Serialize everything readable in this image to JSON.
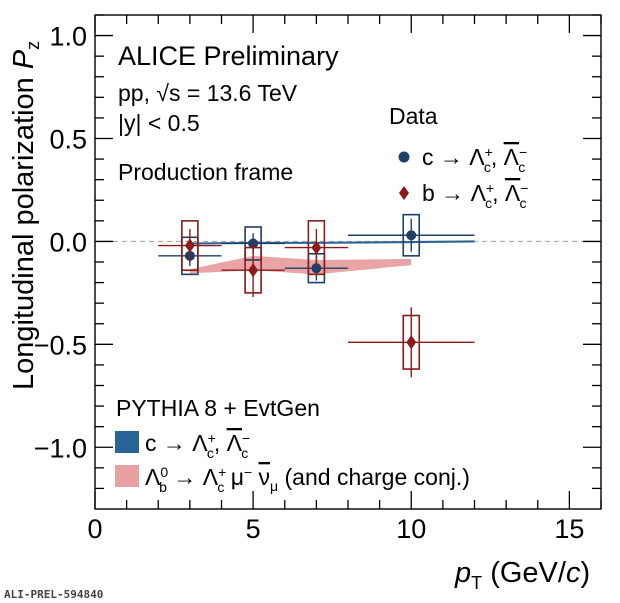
{
  "chart_data": {
    "type": "scatter",
    "title": "ALICE Preliminary",
    "subtitle_lines": [
      "pp, √s = 13.6 TeV",
      "|y| < 0.5"
    ],
    "frame_label": "Production frame",
    "ylabel": "Longitudinal polarization P_z",
    "xlabel": "p_T (GeV/c)",
    "xlim": [
      0,
      16
    ],
    "ylim": [
      -1.3,
      1.1
    ],
    "x_ticks": [
      0,
      5,
      10,
      15
    ],
    "y_ticks": [
      1.0,
      0.5,
      0.0,
      -0.5,
      -1.0
    ],
    "reference_line_y": 0.0,
    "data_legend_title": "Data",
    "series": [
      {
        "name": "c → Λc+, Λc−bar",
        "marker": "circle",
        "color": "#1f3f66",
        "points": [
          {
            "x": 3.0,
            "y": -0.07,
            "xlow": 2.0,
            "xhigh": 4.0,
            "stat": 0.05,
            "syst": 0.09
          },
          {
            "x": 5.0,
            "y": -0.01,
            "xlow": 4.0,
            "xhigh": 6.0,
            "stat": 0.05,
            "syst": 0.08
          },
          {
            "x": 7.0,
            "y": -0.13,
            "xlow": 6.0,
            "xhigh": 8.0,
            "stat": 0.06,
            "syst": 0.07
          },
          {
            "x": 10.0,
            "y": 0.03,
            "xlow": 8.0,
            "xhigh": 12.0,
            "stat": 0.08,
            "syst": 0.1
          }
        ]
      },
      {
        "name": "b → Λc+, Λc−bar",
        "marker": "diamond",
        "color": "#8b1a1a",
        "points": [
          {
            "x": 3.0,
            "y": -0.02,
            "xlow": 2.0,
            "xhigh": 4.0,
            "stat": 0.08,
            "syst": 0.12
          },
          {
            "x": 5.0,
            "y": -0.14,
            "xlow": 4.0,
            "xhigh": 6.0,
            "stat": 0.13,
            "syst": 0.11
          },
          {
            "x": 7.0,
            "y": -0.03,
            "xlow": 6.0,
            "xhigh": 8.0,
            "stat": 0.09,
            "syst": 0.13
          },
          {
            "x": 10.0,
            "y": -0.49,
            "xlow": 8.0,
            "xhigh": 12.0,
            "stat": 0.17,
            "syst": 0.13
          }
        ]
      }
    ],
    "model_legend_title": "PYTHIA 8 + EvtGen",
    "models": [
      {
        "name": "c → Λc+, Λc−bar",
        "color": "#2a6496",
        "x": [
          3.0,
          5.0,
          7.0,
          10.0,
          12.0
        ],
        "ylow": [
          -0.015,
          -0.012,
          -0.012,
          -0.008,
          -0.005
        ],
        "yhigh": [
          -0.005,
          -0.002,
          -0.002,
          0.002,
          0.005
        ]
      },
      {
        "name": "Λb0 → Λc+ μ− ν̄μ (and charge conj.)",
        "color": "#e8a0a0",
        "x": [
          3.0,
          5.0,
          7.0,
          10.0
        ],
        "ylow": [
          -0.155,
          -0.14,
          -0.16,
          -0.115
        ],
        "yhigh": [
          -0.135,
          -0.07,
          -0.09,
          -0.085
        ]
      }
    ]
  },
  "footer_label": "ALI-PREL-594840"
}
